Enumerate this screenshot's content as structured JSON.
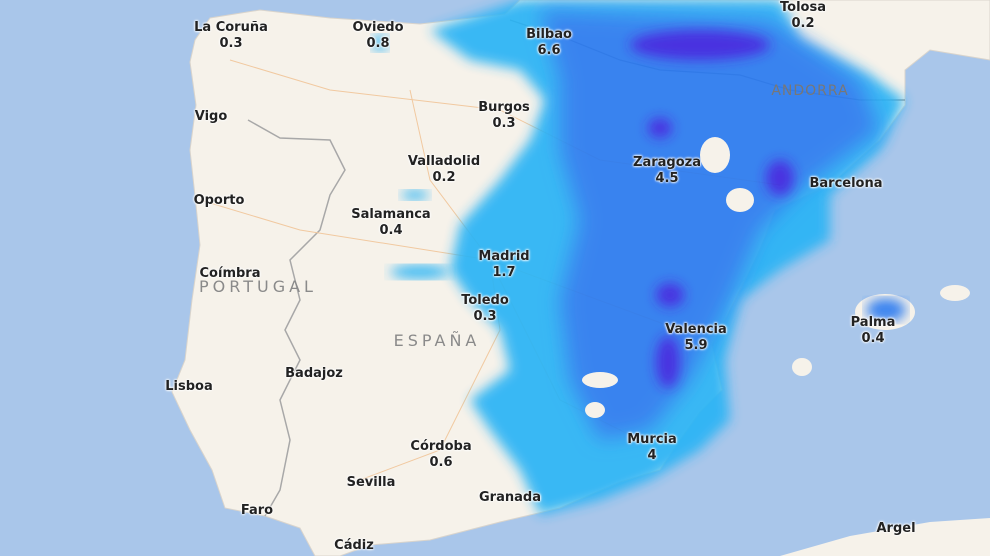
{
  "map": {
    "colors": {
      "sea": "#a9c6ea",
      "land": "#f6f2ea",
      "rain_light": "#2bb4f5",
      "rain_mid": "#2a7af0",
      "rain_heavy": "#3a20e0"
    },
    "countries": [
      {
        "name": "PORTUGAL"
      },
      {
        "name": "ESPAÑA"
      },
      {
        "name": "ANDORRA"
      }
    ],
    "cities": [
      {
        "name": "La Coruña",
        "value": "0.3"
      },
      {
        "name": "Oviedo",
        "value": "0.8"
      },
      {
        "name": "Bilbao",
        "value": "6.6"
      },
      {
        "name": "Tolosa",
        "value": "0.2"
      },
      {
        "name": "Burgos",
        "value": "0.3"
      },
      {
        "name": "Vigo",
        "value": ""
      },
      {
        "name": "Valladolid",
        "value": "0.2"
      },
      {
        "name": "Zaragoza",
        "value": "4.5"
      },
      {
        "name": "Barcelona",
        "value": ""
      },
      {
        "name": "Oporto",
        "value": ""
      },
      {
        "name": "Salamanca",
        "value": "0.4"
      },
      {
        "name": "Madrid",
        "value": "1.7"
      },
      {
        "name": "Coímbra",
        "value": ""
      },
      {
        "name": "Toledo",
        "value": "0.3"
      },
      {
        "name": "Valencia",
        "value": "5.9"
      },
      {
        "name": "Palma",
        "value": "0.4"
      },
      {
        "name": "Lisboa",
        "value": ""
      },
      {
        "name": "Badajoz",
        "value": ""
      },
      {
        "name": "Córdoba",
        "value": "0.6"
      },
      {
        "name": "Murcia",
        "value": "4"
      },
      {
        "name": "Sevilla",
        "value": ""
      },
      {
        "name": "Granada",
        "value": ""
      },
      {
        "name": "Faro",
        "value": ""
      },
      {
        "name": "Cádiz",
        "value": ""
      },
      {
        "name": "Argel",
        "value": ""
      }
    ]
  }
}
